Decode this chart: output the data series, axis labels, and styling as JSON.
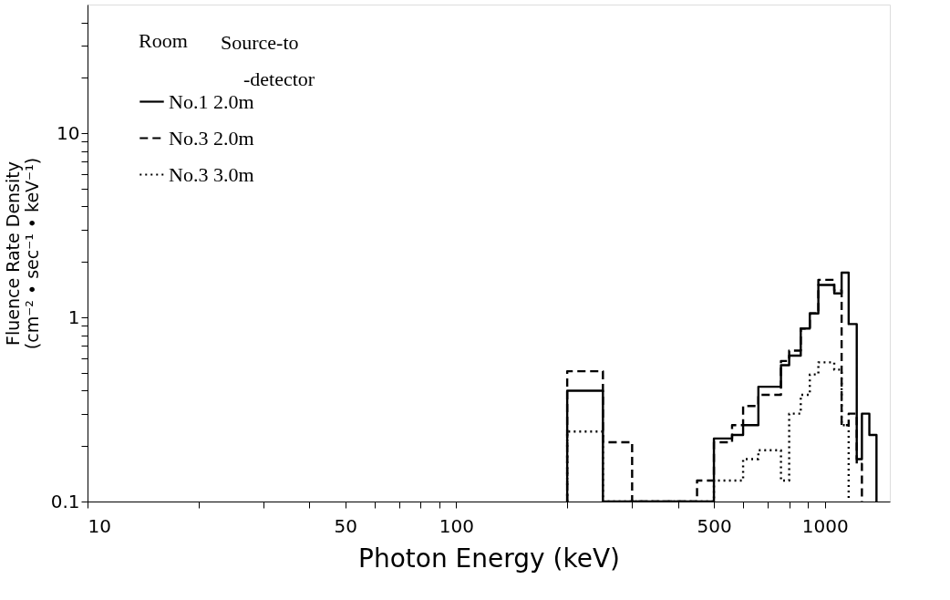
{
  "chart_data": {
    "type": "step",
    "xlabel": "Photon Energy (keV)",
    "ylabel": "Fluence Rate Density\n(cm⁻² • sec⁻¹ • keV⁻¹)",
    "legend_title": "Room",
    "annotations": [
      "Source-to -detector"
    ],
    "log": "xy",
    "grid": false,
    "legend": "top left",
    "marker": "none",
    "xlim": [
      10,
      1500
    ],
    "ylim": [
      0.1,
      50
    ],
    "xticks": [
      10,
      {
        "value": 20,
        "label": null
      },
      {
        "value": 30,
        "label": null
      },
      {
        "value": 40,
        "label": null
      },
      50,
      {
        "value": 60,
        "label": null
      },
      {
        "value": 70,
        "label": null
      },
      {
        "value": 80,
        "label": null
      },
      {
        "value": 90,
        "label": null
      },
      100,
      {
        "value": 200,
        "label": null
      },
      {
        "value": 300,
        "label": null
      },
      {
        "value": 400,
        "label": null
      },
      500,
      {
        "value": 600,
        "label": null
      },
      {
        "value": 700,
        "label": null
      },
      {
        "value": 800,
        "label": null
      },
      {
        "value": 900,
        "label": null
      },
      1000
    ],
    "yticks": [
      0.1,
      {
        "value": 0.2,
        "label": null
      },
      {
        "value": 0.3,
        "label": null
      },
      {
        "value": 0.4,
        "label": null
      },
      {
        "value": 0.5,
        "label": null
      },
      {
        "value": 0.6,
        "label": null
      },
      {
        "value": 0.7,
        "label": null
      },
      {
        "value": 0.8,
        "label": null
      },
      {
        "value": 0.9,
        "label": null
      },
      1,
      {
        "value": 2,
        "label": null
      },
      {
        "value": 3,
        "label": null
      },
      {
        "value": 4,
        "label": null
      },
      {
        "value": 5,
        "label": null
      },
      {
        "value": 6,
        "label": null
      },
      {
        "value": 7,
        "label": null
      },
      {
        "value": 8,
        "label": null
      },
      {
        "value": 9,
        "label": null
      },
      10,
      {
        "value": 20,
        "label": null
      },
      {
        "value": 30,
        "label": null
      },
      {
        "value": 40,
        "label": null
      }
    ],
    "series": [
      {
        "name": "No.1 2.0m",
        "color": "#000000",
        "line_style": "solid",
        "x": [
          200,
          200,
          250,
          500,
          560,
          600,
          660,
          760,
          800,
          860,
          910,
          960,
          1060,
          1110,
          1160,
          1220,
          1260,
          1320,
          1380
        ],
        "values": [
          0.1,
          0.4,
          0.1,
          0.22,
          0.23,
          0.26,
          0.42,
          0.55,
          0.62,
          0.87,
          1.05,
          1.5,
          1.35,
          1.75,
          0.92,
          0.17,
          0.3,
          0.23,
          0.1
        ]
      },
      {
        "name": "No.3 2.0m",
        "color": "#000000",
        "line_style": "dashed",
        "x": [
          200,
          200,
          250,
          300,
          450,
          500,
          560,
          600,
          660,
          760,
          800,
          860,
          910,
          960,
          1060,
          1110,
          1160,
          1220,
          1260
        ],
        "values": [
          0.1,
          0.51,
          0.21,
          0.1,
          0.13,
          0.21,
          0.26,
          0.33,
          0.38,
          0.58,
          0.66,
          0.87,
          1.05,
          1.6,
          1.4,
          0.26,
          0.3,
          0.16,
          0.1
        ]
      },
      {
        "name": "No.3 3.0m",
        "color": "#000000",
        "line_style": "dotted",
        "x": [
          200,
          200,
          250,
          500,
          600,
          660,
          760,
          800,
          860,
          910,
          960,
          1060,
          1110,
          1160
        ],
        "values": [
          0.1,
          0.24,
          0.1,
          0.13,
          0.17,
          0.19,
          0.13,
          0.3,
          0.38,
          0.49,
          0.57,
          0.52,
          0.26,
          0.1
        ]
      }
    ]
  }
}
